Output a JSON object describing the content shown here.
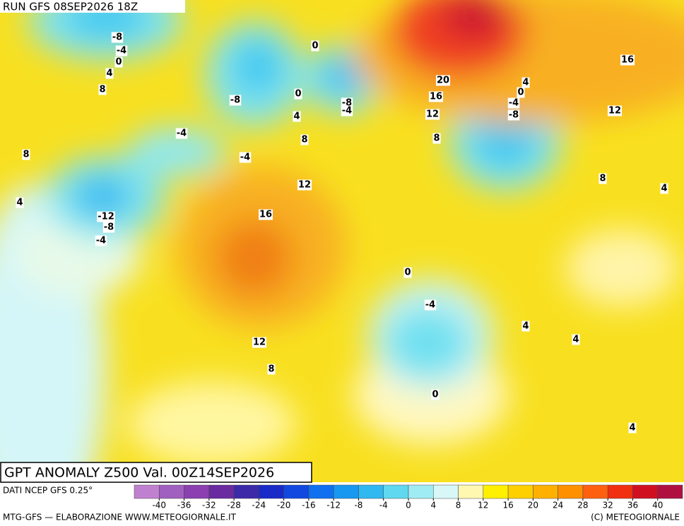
{
  "header": {
    "run": "RUN GFS 08SEP2026 18Z"
  },
  "map": {
    "title": "GPT ANOMALY Z500 Val. 00Z14SEP2026",
    "contour_labels": [
      -8,
      -4,
      0,
      4,
      8,
      0,
      -8,
      0,
      4,
      -8,
      -4,
      20,
      16,
      12,
      8,
      4,
      0,
      -4,
      -8,
      16,
      12,
      -4,
      8,
      -4,
      8,
      4,
      12,
      8,
      4,
      16,
      -12,
      -8,
      -4,
      0,
      -4,
      4,
      4,
      12,
      8,
      0,
      4
    ]
  },
  "colorbar": {
    "lim": [
      -44,
      44
    ],
    "ticks": [
      -40,
      -36,
      -32,
      -28,
      -24,
      -20,
      -16,
      -12,
      -8,
      -4,
      0,
      4,
      8,
      12,
      16,
      20,
      24,
      28,
      32,
      36,
      40
    ],
    "colors": [
      "#c080d0",
      "#a060c0",
      "#8a40b0",
      "#6a2aa0",
      "#3c2aa8",
      "#1a2ac8",
      "#1048e0",
      "#1070f0",
      "#1898f0",
      "#30b8f0",
      "#60d8f0",
      "#a0ecf4",
      "#d8f8f8",
      "#fff8b0",
      "#fff000",
      "#ffd000",
      "#ffb000",
      "#ff9000",
      "#ff6010",
      "#f03010",
      "#d01020",
      "#b01040"
    ]
  },
  "footer": {
    "source": "DATI NCEP GFS 0.25°",
    "credit": "MTG-GFS — ELABORAZIONE WWW.METEOGIORNALE.IT",
    "copyright": "(C) METEOGIORNALE"
  }
}
